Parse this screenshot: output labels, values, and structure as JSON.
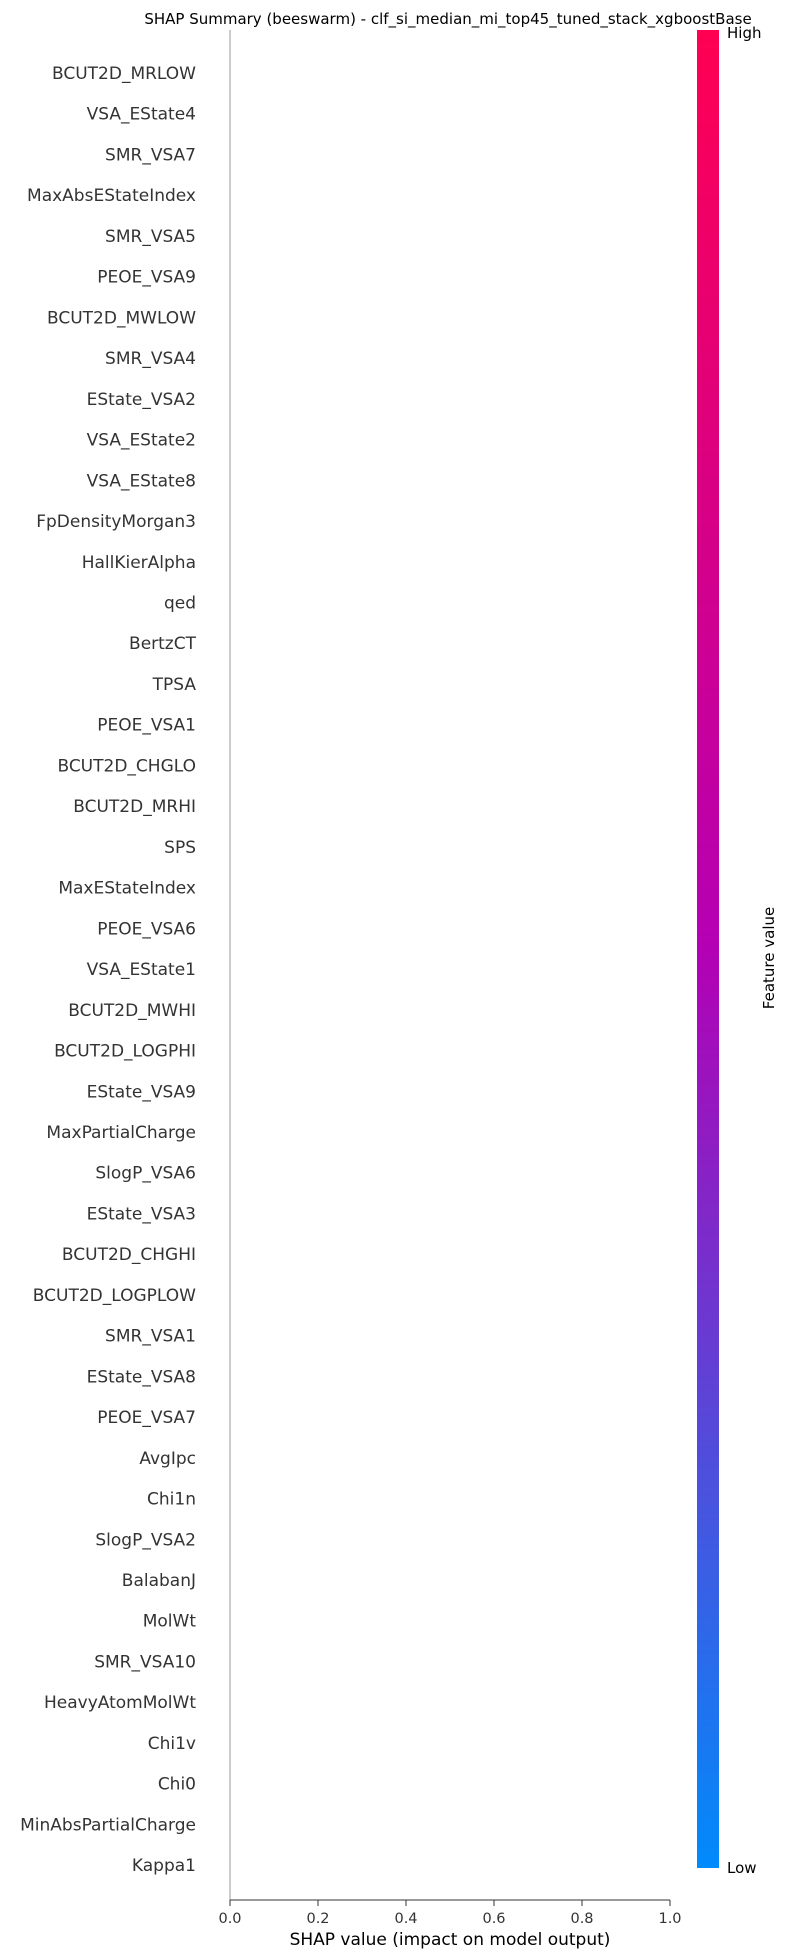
{
  "chart_data": {
    "type": "scatter",
    "title": "SHAP Summary (beeswarm) - clf_si_median_mi_top45_tuned_stack_xgboostBase",
    "xlabel": "SHAP value (impact on model output)",
    "xlim": [
      0.0,
      1.0
    ],
    "x_ticks": [
      "0.0",
      "0.2",
      "0.4",
      "0.6",
      "0.8",
      "1.0"
    ],
    "x_tick_values": [
      0.0,
      0.2,
      0.4,
      0.6,
      0.8,
      1.0
    ],
    "features": [
      "BCUT2D_MRLOW",
      "VSA_EState4",
      "SMR_VSA7",
      "MaxAbsEStateIndex",
      "SMR_VSA5",
      "PEOE_VSA9",
      "BCUT2D_MWLOW",
      "SMR_VSA4",
      "EState_VSA2",
      "VSA_EState2",
      "VSA_EState8",
      "FpDensityMorgan3",
      "HallKierAlpha",
      "qed",
      "BertzCT",
      "TPSA",
      "PEOE_VSA1",
      "BCUT2D_CHGLO",
      "BCUT2D_MRHI",
      "SPS",
      "MaxEStateIndex",
      "PEOE_VSA6",
      "VSA_EState1",
      "BCUT2D_MWHI",
      "BCUT2D_LOGPHI",
      "EState_VSA9",
      "MaxPartialCharge",
      "SlogP_VSA6",
      "EState_VSA3",
      "BCUT2D_CHGHI",
      "BCUT2D_LOGPLOW",
      "SMR_VSA1",
      "EState_VSA8",
      "PEOE_VSA7",
      "AvgIpc",
      "Chi1n",
      "SlogP_VSA2",
      "BalabanJ",
      "MolWt",
      "SMR_VSA10",
      "HeavyAtomMolWt",
      "Chi1v",
      "Chi0",
      "MinAbsPartialCharge",
      "Kappa1"
    ],
    "points": [],
    "colorbar": {
      "label": "Feature value",
      "high_label": "High",
      "low_label": "Low",
      "high_color": "#ff0052",
      "mid_color": "#b400b4",
      "low_color": "#008bfb"
    },
    "grid": false
  }
}
